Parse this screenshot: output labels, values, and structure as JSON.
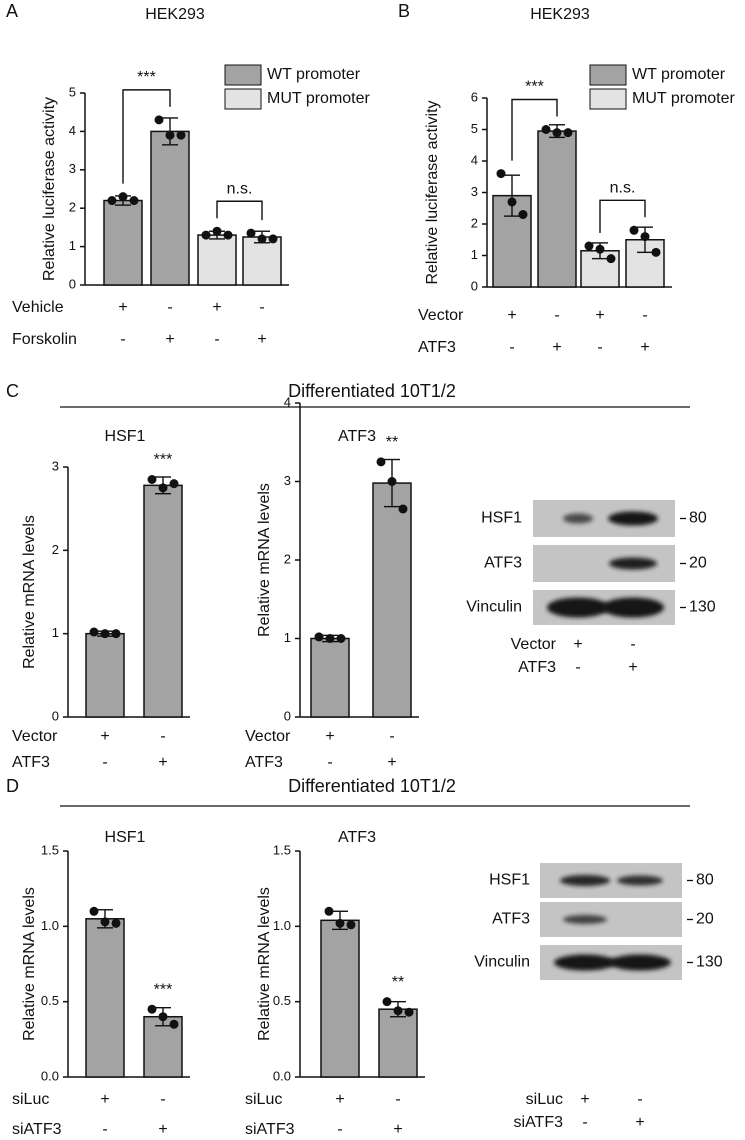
{
  "panels": [
    "A",
    "B",
    "C",
    "D"
  ],
  "headings": [
    "Differentiated 10T1/2",
    "Differentiated 10T1/2"
  ],
  "chart_data": [
    {
      "type": "bar",
      "title": "HEK293",
      "ylabel": "Relative luciferase activity",
      "categories": [
        null,
        null,
        null,
        null
      ],
      "ylim": [
        0,
        5
      ],
      "yticks": [
        0,
        1,
        2,
        3,
        4,
        5
      ],
      "series": [
        {
          "name": "WT promoter",
          "color": "#a3a3a3",
          "values": [
            2.2,
            4.0,
            null,
            null
          ],
          "errors": [
            0.12,
            0.35,
            null,
            null
          ],
          "points": [
            [
              2.2,
              2.3,
              2.2
            ],
            [
              4.3,
              3.9,
              3.9
            ],
            null,
            null
          ]
        },
        {
          "name": "MUT promoter",
          "color": "#e3e3e3",
          "values": [
            null,
            null,
            1.3,
            1.25
          ],
          "errors": [
            null,
            null,
            0.1,
            0.15
          ],
          "points": [
            null,
            null,
            [
              1.3,
              1.4,
              1.3
            ],
            [
              1.35,
              1.2,
              1.2
            ]
          ]
        }
      ],
      "annotations": [
        {
          "text": "***",
          "bars": [
            0,
            1
          ]
        },
        {
          "text": "n.s.",
          "bars": [
            2,
            3
          ]
        }
      ],
      "conditions": [
        {
          "label": "Vehicle",
          "signs": [
            "+",
            "-",
            "+",
            "-"
          ]
        },
        {
          "label": "Forskolin",
          "signs": [
            "-",
            "+",
            "-",
            "+"
          ]
        }
      ]
    },
    {
      "type": "bar",
      "title": "HEK293",
      "ylabel": "Relative luciferase activity",
      "categories": [
        null,
        null,
        null,
        null
      ],
      "ylim": [
        0,
        6
      ],
      "yticks": [
        0,
        1,
        2,
        3,
        4,
        5,
        6
      ],
      "series": [
        {
          "name": "WT promoter",
          "color": "#a3a3a3",
          "values": [
            2.9,
            4.95,
            null,
            null
          ],
          "errors": [
            0.65,
            0.2,
            null,
            null
          ],
          "points": [
            [
              3.6,
              2.7,
              2.3
            ],
            [
              5.0,
              4.9,
              4.9
            ],
            null,
            null
          ]
        },
        {
          "name": "MUT promoter",
          "color": "#e3e3e3",
          "values": [
            null,
            null,
            1.15,
            1.5
          ],
          "errors": [
            null,
            null,
            0.25,
            0.4
          ],
          "points": [
            null,
            null,
            [
              1.3,
              1.2,
              0.9
            ],
            [
              1.8,
              1.6,
              1.1
            ]
          ]
        }
      ],
      "annotations": [
        {
          "text": "***",
          "bars": [
            0,
            1
          ]
        },
        {
          "text": "n.s.",
          "bars": [
            2,
            3
          ]
        }
      ],
      "conditions": [
        {
          "label": "Vector",
          "signs": [
            "+",
            "-",
            "+",
            "-"
          ]
        },
        {
          "label": "ATF3",
          "signs": [
            "-",
            "+",
            "-",
            "+"
          ]
        }
      ]
    },
    {
      "type": "bar",
      "title": "HSF1",
      "ylabel": "Relative mRNA levels",
      "categories": [
        null,
        null
      ],
      "ylim": [
        0,
        3
      ],
      "yticks": [
        0,
        1,
        2,
        3
      ],
      "series": [
        {
          "color": "#a3a3a3",
          "values": [
            1.0,
            2.78
          ],
          "errors": [
            0.03,
            0.1
          ],
          "points": [
            [
              1.02,
              1.0,
              1.0
            ],
            [
              2.85,
              2.75,
              2.8
            ]
          ]
        }
      ],
      "annotations": [
        {
          "text": "***",
          "bars": [
            1
          ]
        }
      ],
      "conditions": [
        {
          "label": "Vector",
          "signs": [
            "+",
            "-"
          ]
        },
        {
          "label": "ATF3",
          "signs": [
            "-",
            "+"
          ]
        }
      ]
    },
    {
      "type": "bar",
      "title": "ATF3",
      "ylabel": "Relative mRNA levels",
      "categories": [
        null,
        null
      ],
      "ylim": [
        0,
        4
      ],
      "yticks": [
        0,
        1,
        2,
        3,
        4
      ],
      "series": [
        {
          "color": "#a3a3a3",
          "values": [
            1.0,
            2.98
          ],
          "errors": [
            0.04,
            0.3
          ],
          "points": [
            [
              1.02,
              1.0,
              1.0
            ],
            [
              3.25,
              3.0,
              2.65
            ]
          ]
        }
      ],
      "annotations": [
        {
          "text": "**",
          "bars": [
            1
          ]
        }
      ],
      "conditions": [
        {
          "label": "Vector",
          "signs": [
            "+",
            "-"
          ]
        },
        {
          "label": "ATF3",
          "signs": [
            "-",
            "+"
          ]
        }
      ]
    },
    {
      "type": "bar",
      "title": "HSF1",
      "ylabel": "Relative mRNA levels",
      "categories": [
        null,
        null
      ],
      "ylim": [
        0,
        1.5
      ],
      "yticks": [
        {
          "value": 0,
          "label": "0.0"
        },
        0.5,
        {
          "value": 1,
          "label": "1.0"
        },
        1.5
      ],
      "series": [
        {
          "color": "#a3a3a3",
          "values": [
            1.05,
            0.4
          ],
          "errors": [
            0.06,
            0.06
          ],
          "points": [
            [
              1.1,
              1.03,
              1.02
            ],
            [
              0.45,
              0.4,
              0.35
            ]
          ]
        }
      ],
      "annotations": [
        {
          "text": "***",
          "bars": [
            1
          ]
        }
      ],
      "conditions": [
        {
          "label": "siLuc",
          "signs": [
            "+",
            "-"
          ]
        },
        {
          "label": "siATF3",
          "signs": [
            "-",
            "+"
          ]
        }
      ]
    },
    {
      "type": "bar",
      "title": "ATF3",
      "ylabel": "Relative mRNA levels",
      "categories": [
        null,
        null
      ],
      "ylim": [
        0,
        1.5
      ],
      "yticks": [
        {
          "value": 0,
          "label": "0.0"
        },
        0.5,
        {
          "value": 1,
          "label": "1.0"
        },
        1.5
      ],
      "series": [
        {
          "color": "#a3a3a3",
          "values": [
            1.04,
            0.45
          ],
          "errors": [
            0.06,
            0.05
          ],
          "points": [
            [
              1.1,
              1.02,
              1.01
            ],
            [
              0.5,
              0.44,
              0.43
            ]
          ]
        }
      ],
      "annotations": [
        {
          "text": "**",
          "bars": [
            1
          ]
        }
      ],
      "conditions": [
        {
          "label": "siLuc",
          "signs": [
            "+",
            "-"
          ]
        },
        {
          "label": "siATF3",
          "signs": [
            "-",
            "+"
          ]
        }
      ]
    }
  ],
  "blots": [
    {
      "rows": [
        {
          "label": "HSF1",
          "size": "80"
        },
        {
          "label": "ATF3",
          "size": "20"
        },
        {
          "label": "Vinculin",
          "size": "130"
        }
      ],
      "conditions": [
        {
          "label": "Vector",
          "signs": [
            "+",
            "-"
          ]
        },
        {
          "label": "ATF3",
          "signs": [
            "-",
            "+"
          ]
        }
      ]
    },
    {
      "rows": [
        {
          "label": "HSF1",
          "size": "80"
        },
        {
          "label": "ATF3",
          "size": "20"
        },
        {
          "label": "Vinculin",
          "size": "130"
        }
      ],
      "conditions": [
        {
          "label": "siLuc",
          "signs": [
            "+",
            "-"
          ]
        },
        {
          "label": "siATF3",
          "signs": [
            "-",
            "+"
          ]
        }
      ]
    }
  ]
}
